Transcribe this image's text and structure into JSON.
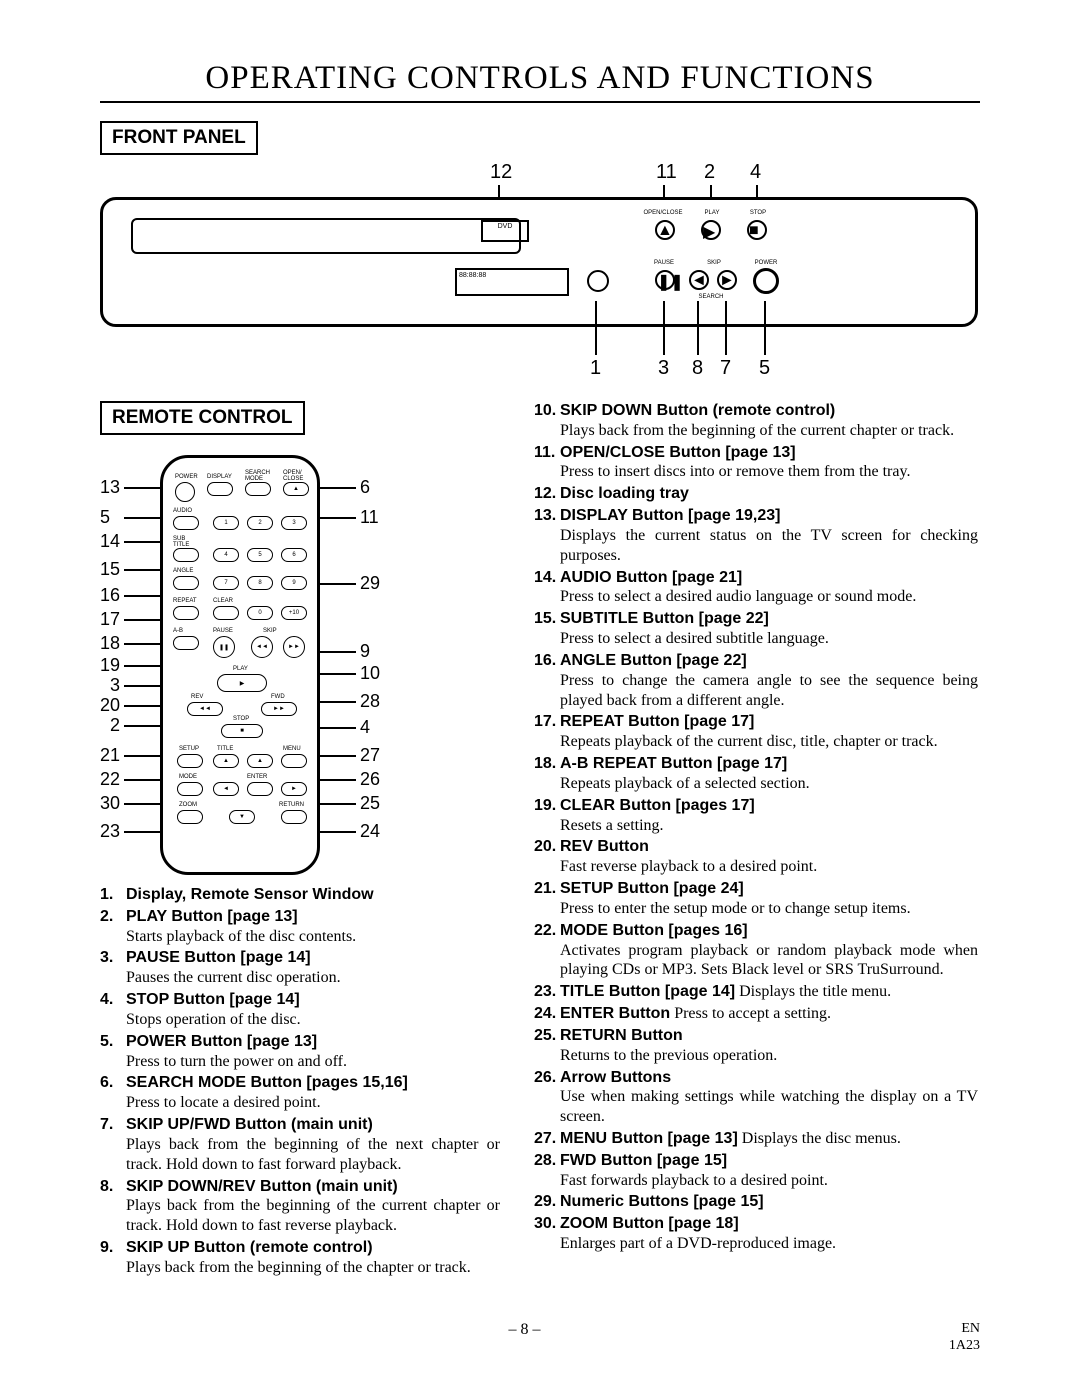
{
  "page": {
    "title": "OPERATING CONTROLS AND FUNCTIONS",
    "front_panel_label": "FRONT PANEL",
    "remote_label": "REMOTE CONTROL",
    "page_number": "– 8 –",
    "footer_lang": "EN",
    "footer_code": "1A23"
  },
  "front_panel_callouts_top": [
    "12",
    "11",
    "2",
    "4"
  ],
  "front_panel_callouts_bottom": [
    "1",
    "3",
    "8",
    "7",
    "5"
  ],
  "fp_button_labels": {
    "open_close": "OPEN/CLOSE",
    "play": "PLAY",
    "stop": "STOP",
    "pause": "PAUSE",
    "skip": "SKIP",
    "power": "POWER",
    "search": "SEARCH",
    "rev": "◄◄",
    "fwd": "►►"
  },
  "remote_left_nums": [
    "13",
    "5",
    "14",
    "15",
    "16",
    "17",
    "18",
    "19",
    "3",
    "20",
    "2",
    "21",
    "22",
    "30",
    "23"
  ],
  "remote_right_nums": [
    "6",
    "11",
    "29",
    "9",
    "10",
    "28",
    "4",
    "27",
    "26",
    "25",
    "24"
  ],
  "remote_button_labels": {
    "power": "POWER",
    "display": "DISPLAY",
    "search": "SEARCH\nMODE",
    "open": "OPEN/\nCLOSE",
    "audio": "AUDIO",
    "sub": "SUB\nTITLE",
    "angle": "ANGLE",
    "repeat": "REPEAT",
    "clear": "CLEAR",
    "plus10": "+10",
    "ab": "A-B",
    "pause": "PAUSE",
    "skip": "SKIP",
    "play": "PLAY",
    "rev": "REV",
    "fwd": "FWD",
    "stop": "STOP",
    "setup": "SETUP",
    "title": "TITLE",
    "menu": "MENU",
    "mode": "MODE",
    "enter": "ENTER",
    "return": "RETURN",
    "zoom": "ZOOM"
  },
  "entries_left": [
    {
      "n": "1.",
      "t": "Display, Remote Sensor Window",
      "d": ""
    },
    {
      "n": "2.",
      "t": "PLAY Button [page 13]",
      "d": "Starts playback of the disc contents."
    },
    {
      "n": "3.",
      "t": "PAUSE Button [page 14]",
      "d": "Pauses the current disc operation."
    },
    {
      "n": "4.",
      "t": "STOP Button [page 14]",
      "d": "Stops operation of the disc."
    },
    {
      "n": "5.",
      "t": "POWER Button [page 13]",
      "d": "Press to turn the power on and off."
    },
    {
      "n": "6.",
      "t": "SEARCH MODE Button [pages 15,16]",
      "d": "Press to locate a desired point."
    },
    {
      "n": "7.",
      "t": "SKIP UP/FWD Button (main unit)",
      "d": "Plays back from the beginning of the next chapter or track. Hold down to fast forward playback."
    },
    {
      "n": "8.",
      "t": "SKIP DOWN/REV Button (main unit)",
      "d": "Plays back from the beginning of the current chapter or track. Hold down to fast reverse playback."
    },
    {
      "n": "9.",
      "t": "SKIP UP Button (remote control)",
      "d": "Plays back from the beginning of the chapter or track."
    }
  ],
  "entries_right": [
    {
      "n": "10.",
      "t": "SKIP DOWN Button (remote control)",
      "d": "Plays back from the beginning of the current chapter or track."
    },
    {
      "n": "11.",
      "t": "OPEN/CLOSE Button [page 13]",
      "d": "Press to insert discs into or remove them from the tray."
    },
    {
      "n": "12.",
      "t": "Disc loading tray",
      "d": ""
    },
    {
      "n": "13.",
      "t": "DISPLAY Button [page 19,23]",
      "d": "Displays the current status on the TV screen for checking purposes."
    },
    {
      "n": "14.",
      "t": "AUDIO Button [page 21]",
      "d": "Press to select a desired audio language or sound mode."
    },
    {
      "n": "15.",
      "t": "SUBTITLE Button [page 22]",
      "d": "Press to select a desired subtitle language."
    },
    {
      "n": "16.",
      "t": "ANGLE Button [page 22]",
      "d": "Press to change the camera angle to see the sequence being played back from a different angle."
    },
    {
      "n": "17.",
      "t": "REPEAT Button [page 17]",
      "d": "Repeats playback of the current disc, title, chapter or track."
    },
    {
      "n": "18.",
      "t": "A-B REPEAT Button [page 17]",
      "d": "Repeats playback of a selected section."
    },
    {
      "n": "19.",
      "t": "CLEAR Button [pages 17]",
      "d": "Resets a setting."
    },
    {
      "n": "20.",
      "t": "REV Button",
      "d": "Fast reverse playback to a desired point."
    },
    {
      "n": "21.",
      "t": "SETUP Button [page 24]",
      "d": "Press to enter the setup mode or to change setup items."
    },
    {
      "n": "22.",
      "t": "MODE Button [pages 16]",
      "d": "Activates program playback or random playback mode when playing CDs or MP3. Sets Black level or SRS TruSurround."
    },
    {
      "n": "23.",
      "t": "TITLE Button [page 14]",
      "di": "Displays the title menu."
    },
    {
      "n": "24.",
      "t": "ENTER Button",
      "di": "Press to accept a setting."
    },
    {
      "n": "25.",
      "t": "RETURN Button",
      "d": "Returns to the previous operation."
    },
    {
      "n": "26.",
      "t": "Arrow Buttons",
      "d": "Use when making settings while watching the display on a TV screen."
    },
    {
      "n": "27.",
      "t": "MENU Button [page 13]",
      "di": "Displays the disc menus."
    },
    {
      "n": "28.",
      "t": "FWD Button [page 15]",
      "d": "Fast forwards playback to a desired point."
    },
    {
      "n": "29.",
      "t": "Numeric Buttons [page 15]",
      "d": ""
    },
    {
      "n": "30.",
      "t": "ZOOM Button [page 18]",
      "d": "Enlarges part of a DVD-reproduced image."
    }
  ],
  "style": {
    "background_color": "#ffffff",
    "text_color": "#000000",
    "title_fontsize": 33,
    "body_fontsize": 16,
    "label_fontsize": 19,
    "callout_fontsize": 20,
    "font_serif": "Times New Roman",
    "font_sans": "Arial"
  }
}
